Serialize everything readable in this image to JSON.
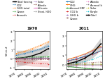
{
  "chart_data": [
    {
      "type": "line",
      "title": "1970",
      "ylabel": "W m-2",
      "marker": "o",
      "x": [
        1970,
        1980,
        1990,
        2000,
        2010
      ],
      "xlim": [
        1968,
        2011
      ],
      "xticks": [
        1970,
        1980,
        1990,
        2000,
        2010
      ],
      "ylim": [
        -1.2,
        3.0
      ],
      "yticks": [
        -1,
        0,
        1,
        2,
        3
      ],
      "series": [
        {
          "name": "Total forcing",
          "color": "#000000",
          "line_style": "solid",
          "values": [
            0.0,
            0.1,
            0.3,
            0.6,
            1.1
          ],
          "low": [
            -0.9,
            -0.7,
            -0.4,
            0.0,
            0.4
          ],
          "high": [
            0.9,
            0.9,
            1.0,
            1.2,
            1.8
          ]
        },
        {
          "name": "CO2",
          "line_style": "dotted",
          "values": [
            0.35,
            0.55,
            0.8,
            1.05,
            1.4
          ],
          "low": [
            0.3,
            0.48,
            0.72,
            0.95,
            1.3
          ],
          "high": [
            0.4,
            0.62,
            0.88,
            1.15,
            1.5
          ]
        },
        {
          "name": "GHG total",
          "line_style": "dotted",
          "values": [
            0.55,
            0.8,
            1.1,
            1.45,
            1.85
          ],
          "low": [
            0.45,
            0.68,
            0.98,
            1.33,
            1.72
          ],
          "high": [
            0.65,
            0.92,
            1.22,
            1.57,
            1.98
          ]
        },
        {
          "name": "Ozone",
          "line_style": "dotted",
          "values": [
            0.1,
            0.12,
            0.15,
            0.18,
            0.22
          ],
          "low": [
            -0.05,
            -0.02,
            0.02,
            0.05,
            0.09
          ],
          "high": [
            0.25,
            0.26,
            0.28,
            0.31,
            0.35
          ]
        },
        {
          "name": "Aerosols",
          "line_style": "dotted",
          "values": [
            -0.3,
            -0.4,
            -0.5,
            -0.55,
            -0.6
          ],
          "low": [
            -0.65,
            -0.75,
            -0.85,
            -0.9,
            -0.95
          ],
          "high": [
            0.05,
            -0.05,
            -0.15,
            -0.2,
            -0.25
          ]
        },
        {
          "name": "Solar",
          "line_style": "dotted",
          "values": [
            0.05,
            0.06,
            0.05,
            0.07,
            0.06
          ]
        },
        {
          "name": "Albedo",
          "line_style": "dotted",
          "values": [
            -0.05,
            -0.08,
            -0.1,
            -0.11,
            -0.12
          ]
        },
        {
          "name": "Volcanic",
          "line_style": "solid",
          "values": [
            0.0,
            -0.01,
            -0.03,
            -0.01,
            0.0
          ]
        },
        {
          "name": "Strat. H2O",
          "line_style": "dotted",
          "values": [
            0.06,
            0.07,
            0.08,
            0.09,
            0.1
          ]
        }
      ]
    },
    {
      "type": "line",
      "title": "2011",
      "marker": "o",
      "x": [
        1970,
        1980,
        1990,
        2000,
        2010
      ],
      "xlim": [
        1968,
        2011
      ],
      "xticks": [
        1970,
        1980,
        1990,
        2000,
        2010
      ],
      "ylim": [
        -0.5,
        3.5
      ],
      "yticks": [
        0,
        1,
        2,
        3
      ],
      "series": [
        {
          "name": "CO2",
          "line_style": "solid",
          "values": [
            0.4,
            0.6,
            0.85,
            1.1,
            1.45
          ]
        },
        {
          "name": "GHG",
          "line_style": "solid",
          "values": [
            0.55,
            0.8,
            1.1,
            1.48,
            1.9
          ]
        },
        {
          "name": "Aerosol ERF",
          "line_style": "solid",
          "values": [
            -0.2,
            -0.28,
            -0.38,
            -0.45,
            -0.5
          ]
        },
        {
          "name": "CO2 b",
          "line_style": "dotted",
          "values": [
            0.38,
            0.58,
            0.82,
            1.08,
            1.42
          ]
        },
        {
          "name": "GHG b",
          "line_style": "dotted",
          "values": [
            0.52,
            0.76,
            1.05,
            1.43,
            1.85
          ]
        },
        {
          "name": "Ozone",
          "line_style": "dotted",
          "values": [
            0.1,
            0.14,
            0.18,
            0.22,
            0.28
          ]
        },
        {
          "name": "Albedo",
          "line_style": "dotted",
          "values": [
            -0.05,
            -0.07,
            -0.09,
            -0.11,
            -0.12
          ]
        },
        {
          "name": "Aerosol b",
          "line_style": "dotted",
          "values": [
            -0.18,
            -0.25,
            -0.33,
            -0.4,
            -0.46
          ]
        },
        {
          "name": "Solar",
          "line_style": "dotted",
          "values": [
            0.04,
            0.05,
            0.05,
            0.06,
            0.06
          ]
        },
        {
          "name": "Purple",
          "line_style": "dotted",
          "values": [
            0.12,
            0.2,
            0.32,
            0.55,
            0.9
          ]
        },
        {
          "name": "Total",
          "color": "#000000",
          "line_style": "solid",
          "values": [
            0.1,
            0.3,
            0.65,
            1.2,
            2.2
          ],
          "low": [
            -0.3,
            -0.05,
            0.25,
            0.7,
            1.55
          ],
          "high": [
            0.5,
            0.65,
            1.05,
            1.7,
            2.85
          ]
        }
      ]
    }
  ]
}
